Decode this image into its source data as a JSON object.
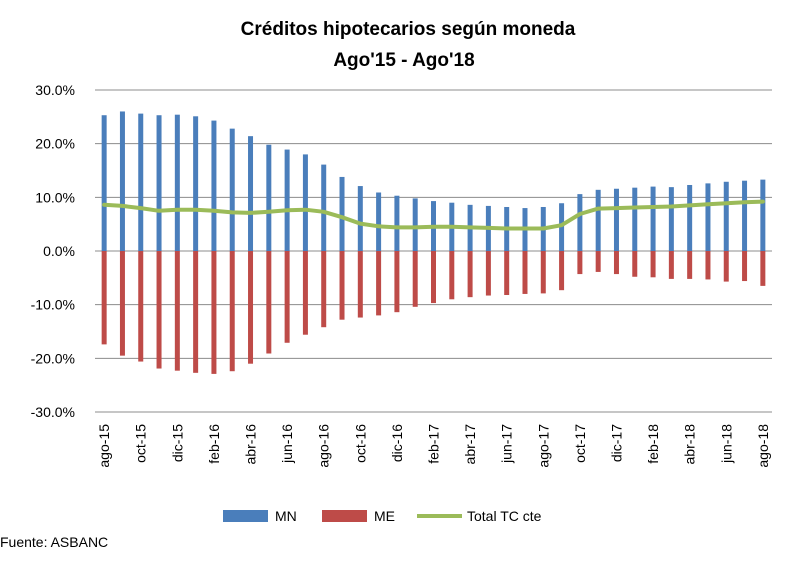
{
  "chart_data": {
    "type": "bar",
    "title": "Créditos hipotecarios según moneda",
    "subtitle": "Ago'15 - Ago'18",
    "ylim": [
      -30,
      30
    ],
    "y_ticks": [
      30,
      20,
      10,
      0,
      -10,
      -20,
      -30
    ],
    "y_tick_labels": [
      "30.0%",
      "20.0%",
      "10.0%",
      "0.0%",
      "-10.0%",
      "-20.0%",
      "-30.0%"
    ],
    "grid": true,
    "legend_position": "bottom",
    "categories": [
      "ago-15",
      "sep-15",
      "oct-15",
      "nov-15",
      "dic-15",
      "ene-16",
      "feb-16",
      "mar-16",
      "abr-16",
      "may-16",
      "jun-16",
      "jul-16",
      "ago-16",
      "sep-16",
      "oct-16",
      "nov-16",
      "dic-16",
      "ene-17",
      "feb-17",
      "mar-17",
      "abr-17",
      "may-17",
      "jun-17",
      "jul-17",
      "ago-17",
      "sep-17",
      "oct-17",
      "nov-17",
      "dic-17",
      "ene-18",
      "feb-18",
      "mar-18",
      "abr-18",
      "may-18",
      "jun-18",
      "jul-18",
      "ago-18"
    ],
    "x_tick_labels": [
      "ago-15",
      "oct-15",
      "dic-15",
      "feb-16",
      "abr-16",
      "jun-16",
      "ago-16",
      "oct-16",
      "dic-16",
      "feb-17",
      "abr-17",
      "jun-17",
      "ago-17",
      "oct-17",
      "dic-17",
      "feb-18",
      "abr-18",
      "jun-18",
      "ago-18"
    ],
    "series": [
      {
        "name": "MN",
        "kind": "bar",
        "color": "#4a7ebb",
        "values": [
          25.3,
          26.0,
          25.6,
          25.3,
          25.4,
          25.1,
          24.3,
          22.8,
          21.4,
          19.8,
          18.9,
          18.0,
          16.1,
          13.8,
          12.1,
          10.9,
          10.3,
          9.8,
          9.3,
          9.0,
          8.6,
          8.4,
          8.2,
          8.0,
          8.2,
          8.9,
          10.6,
          11.4,
          11.6,
          11.8,
          12.0,
          11.9,
          12.3,
          12.6,
          12.9,
          13.1,
          13.3
        ]
      },
      {
        "name": "ME",
        "kind": "bar",
        "color": "#be4b48",
        "values": [
          -17.4,
          -19.5,
          -20.6,
          -21.9,
          -22.3,
          -22.7,
          -22.9,
          -22.4,
          -21.0,
          -19.1,
          -17.1,
          -15.6,
          -14.2,
          -12.8,
          -12.4,
          -12.0,
          -11.4,
          -10.4,
          -9.7,
          -9.0,
          -8.6,
          -8.3,
          -8.2,
          -8.0,
          -7.9,
          -7.3,
          -4.3,
          -3.9,
          -4.3,
          -4.8,
          -4.9,
          -5.2,
          -5.2,
          -5.3,
          -5.7,
          -5.6,
          -6.5
        ]
      },
      {
        "name": "Total TC cte",
        "kind": "line",
        "color": "#9bbb59",
        "values": [
          8.6,
          8.4,
          8.0,
          7.5,
          7.7,
          7.7,
          7.5,
          7.2,
          7.1,
          7.3,
          7.6,
          7.7,
          7.3,
          6.3,
          5.1,
          4.6,
          4.4,
          4.4,
          4.5,
          4.5,
          4.4,
          4.3,
          4.2,
          4.2,
          4.2,
          4.8,
          6.9,
          7.9,
          8.0,
          8.1,
          8.2,
          8.3,
          8.5,
          8.7,
          8.9,
          9.1,
          9.2
        ]
      }
    ]
  },
  "footer": {
    "source": "Fuente: ASBANC"
  }
}
